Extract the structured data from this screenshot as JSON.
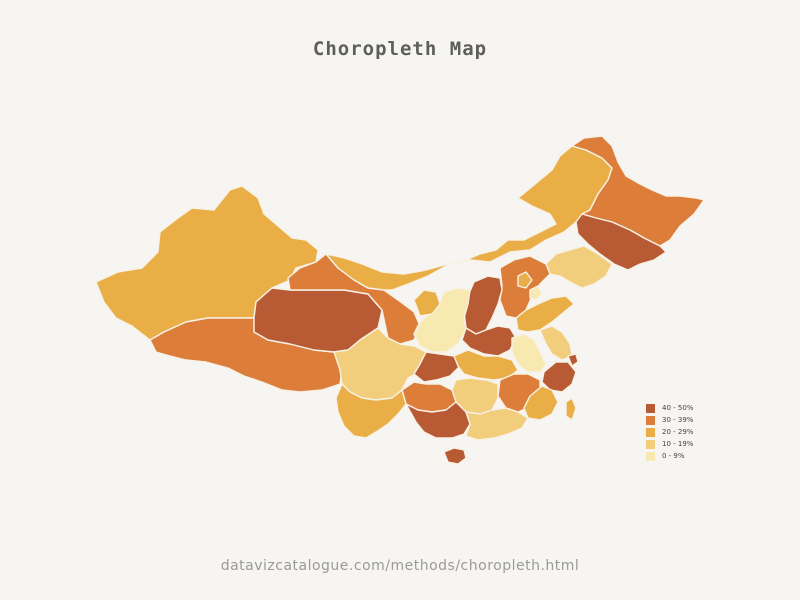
{
  "title": "Choropleth Map",
  "source_text": "datavizcatalogue.com/methods/choropleth.html",
  "legend": [
    {
      "label": "40 - 50%",
      "color": "#b85a33"
    },
    {
      "label": "30 - 39%",
      "color": "#dc7d39"
    },
    {
      "label": "20 - 29%",
      "color": "#eaae47"
    },
    {
      "label": "10 - 19%",
      "color": "#f2cd7c"
    },
    {
      "label": "0 - 9%",
      "color": "#f8e9b0"
    }
  ],
  "regions": [
    {
      "name": "Xinjiang",
      "class": "20 - 29%"
    },
    {
      "name": "Tibet",
      "class": "30 - 39%"
    },
    {
      "name": "Qinghai",
      "class": "40 - 50%"
    },
    {
      "name": "Gansu",
      "class": "30 - 39%"
    },
    {
      "name": "Inner Mongolia",
      "class": "20 - 29%"
    },
    {
      "name": "Heilongjiang",
      "class": "30 - 39%"
    },
    {
      "name": "Jilin",
      "class": "40 - 50%"
    },
    {
      "name": "Liaoning",
      "class": "10 - 19%"
    },
    {
      "name": "Hebei",
      "class": "30 - 39%"
    },
    {
      "name": "Shanxi",
      "class": "40 - 50%"
    },
    {
      "name": "Shaanxi",
      "class": "0 - 9%"
    },
    {
      "name": "Ningxia",
      "class": "20 - 29%"
    },
    {
      "name": "Sichuan",
      "class": "10 - 19%"
    },
    {
      "name": "Chongqing",
      "class": "40 - 50%"
    },
    {
      "name": "Henan",
      "class": "40 - 50%"
    },
    {
      "name": "Shandong",
      "class": "20 - 29%"
    },
    {
      "name": "Anhui",
      "class": "0 - 9%"
    },
    {
      "name": "Jiangsu",
      "class": "10 - 19%"
    },
    {
      "name": "Hubei",
      "class": "20 - 29%"
    },
    {
      "name": "Zhejiang",
      "class": "40 - 50%"
    },
    {
      "name": "Hunan",
      "class": "10 - 19%"
    },
    {
      "name": "Jiangxi",
      "class": "30 - 39%"
    },
    {
      "name": "Fujian",
      "class": "20 - 29%"
    },
    {
      "name": "Guizhou",
      "class": "30 - 39%"
    },
    {
      "name": "Yunnan",
      "class": "20 - 29%"
    },
    {
      "name": "Guangxi",
      "class": "40 - 50%"
    },
    {
      "name": "Guangdong",
      "class": "10 - 19%"
    },
    {
      "name": "Hainan",
      "class": "40 - 50%"
    },
    {
      "name": "Taiwan",
      "class": "20 - 29%"
    },
    {
      "name": "Beijing",
      "class": "20 - 29%"
    },
    {
      "name": "Tianjin",
      "class": "0 - 9%"
    },
    {
      "name": "Shanghai",
      "class": "40 - 50%"
    }
  ]
}
